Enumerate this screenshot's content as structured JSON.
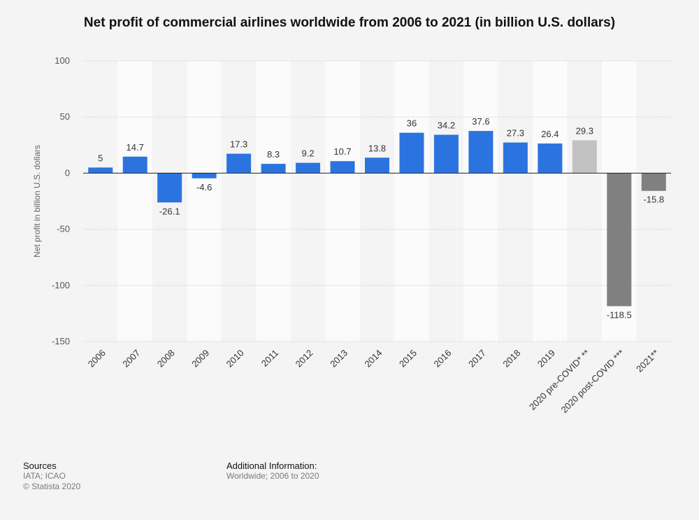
{
  "chart_data": {
    "type": "bar",
    "title": "Net profit of commercial airlines worldwide from 2006 to 2021 (in billion U.S. dollars)",
    "ylabel": "Net profit in billion U.S. dollars",
    "xlabel": "",
    "ylim": [
      -150,
      100
    ],
    "yticks": [
      100,
      50,
      0,
      -50,
      -100,
      -150
    ],
    "grid": true,
    "categories": [
      "2006",
      "2007",
      "2008",
      "2009",
      "2010",
      "2011",
      "2012",
      "2013",
      "2014",
      "2015",
      "2016",
      "2017",
      "2018",
      "2019",
      "2020 pre-COVID* **",
      "2020 post-COVID ***",
      "2021**"
    ],
    "values": [
      5,
      14.7,
      -26.1,
      -4.6,
      17.3,
      8.3,
      9.2,
      10.7,
      13.8,
      36,
      34.2,
      37.6,
      27.3,
      26.4,
      29.3,
      -118.5,
      -15.8
    ],
    "value_labels": [
      "5",
      "14.7",
      "-26.1",
      "-4.6",
      "17.3",
      "8.3",
      "9.2",
      "10.7",
      "13.8",
      "36",
      "34.2",
      "37.6",
      "27.3",
      "26.4",
      "29.3",
      "-118.5",
      "-15.8"
    ],
    "bar_colors": [
      "#2b74e0",
      "#2b74e0",
      "#2b74e0",
      "#2b74e0",
      "#2b74e0",
      "#2b74e0",
      "#2b74e0",
      "#2b74e0",
      "#2b74e0",
      "#2b74e0",
      "#2b74e0",
      "#2b74e0",
      "#2b74e0",
      "#2b74e0",
      "#c2c2c2",
      "#808080",
      "#808080"
    ]
  },
  "footer": {
    "sources_heading": "Sources",
    "sources_line1": "IATA; ICAO",
    "sources_line2": "© Statista 2020",
    "additional_heading": "Additional Information:",
    "additional_text": "Worldwide; 2006 to 2020"
  }
}
